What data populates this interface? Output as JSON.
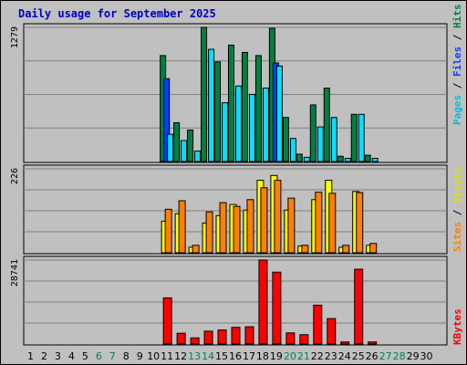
{
  "title": "Daily usage for September 2025",
  "chart_data": [
    {
      "type": "bar",
      "panel": "hits-files-pages",
      "ymax_label": "1279",
      "ylim": [
        0,
        1279
      ],
      "legend_labels": {
        "pages": "Pages",
        "files": "Files",
        "hits": "Hits",
        "sep": " / "
      },
      "categories": [
        "1",
        "2",
        "3",
        "4",
        "5",
        "6",
        "7",
        "8",
        "9",
        "10",
        "11",
        "12",
        "13",
        "14",
        "15",
        "16",
        "17",
        "18",
        "19",
        "20",
        "21",
        "22",
        "23",
        "24",
        "25",
        "26",
        "27",
        "28",
        "29",
        "30"
      ],
      "series": [
        {
          "name": "Hits",
          "color": "#008040",
          "values": [
            0,
            0,
            0,
            0,
            0,
            0,
            0,
            0,
            0,
            0,
            1010,
            370,
            300,
            1279,
            950,
            1110,
            1040,
            1010,
            1270,
            420,
            70,
            540,
            700,
            50,
            450,
            60,
            0,
            0,
            0,
            0
          ]
        },
        {
          "name": "Files",
          "color": "#0040ff",
          "values": [
            0,
            0,
            0,
            0,
            0,
            0,
            0,
            0,
            0,
            0,
            790,
            0,
            0,
            0,
            0,
            0,
            0,
            0,
            940,
            0,
            0,
            0,
            0,
            0,
            0,
            0,
            0,
            0,
            0,
            0
          ]
        },
        {
          "name": "Pages",
          "color": "#00e0ff",
          "values": [
            0,
            0,
            0,
            0,
            0,
            0,
            0,
            0,
            0,
            0,
            260,
            200,
            100,
            1070,
            560,
            720,
            640,
            700,
            910,
            220,
            40,
            330,
            420,
            30,
            450,
            30,
            0,
            0,
            0,
            0
          ]
        }
      ]
    },
    {
      "type": "bar",
      "panel": "sites-visits",
      "ymax_label": "226",
      "ylim": [
        0,
        226
      ],
      "legend_labels": {
        "sites": "Sites",
        "visits": "Visits",
        "sep": " / "
      },
      "categories": [
        "1",
        "2",
        "3",
        "4",
        "5",
        "6",
        "7",
        "8",
        "9",
        "10",
        "11",
        "12",
        "13",
        "14",
        "15",
        "16",
        "17",
        "18",
        "19",
        "20",
        "21",
        "22",
        "23",
        "24",
        "25",
        "26",
        "27",
        "28",
        "29",
        "30"
      ],
      "series": [
        {
          "name": "Visits",
          "color": "#ffff00",
          "values": [
            0,
            0,
            0,
            0,
            0,
            0,
            0,
            0,
            0,
            0,
            85,
            105,
            15,
            80,
            100,
            130,
            115,
            195,
            208,
            115,
            18,
            143,
            195,
            15,
            165,
            20,
            0,
            0,
            0,
            0
          ]
        },
        {
          "name": "Sites",
          "color": "#ff8000",
          "values": [
            0,
            0,
            0,
            0,
            0,
            0,
            0,
            0,
            0,
            0,
            117,
            140,
            20,
            110,
            135,
            125,
            143,
            175,
            195,
            147,
            20,
            163,
            160,
            20,
            162,
            25,
            0,
            0,
            0,
            0
          ]
        }
      ]
    },
    {
      "type": "bar",
      "panel": "kbytes",
      "ymax_label": "28741",
      "ylim": [
        0,
        28741
      ],
      "legend_labels": {
        "kbytes": "KBytes"
      },
      "categories": [
        "1",
        "2",
        "3",
        "4",
        "5",
        "6",
        "7",
        "8",
        "9",
        "10",
        "11",
        "12",
        "13",
        "14",
        "15",
        "16",
        "17",
        "18",
        "19",
        "20",
        "21",
        "22",
        "23",
        "24",
        "25",
        "26",
        "27",
        "28",
        "29",
        "30"
      ],
      "series": [
        {
          "name": "KBytes",
          "color": "#ff0000",
          "values": [
            0,
            0,
            0,
            0,
            0,
            0,
            0,
            0,
            0,
            0,
            15800,
            3700,
            2100,
            4400,
            4800,
            5700,
            5900,
            28741,
            24600,
            3800,
            3200,
            13300,
            8700,
            700,
            25600,
            700,
            0,
            0,
            0,
            0
          ]
        }
      ]
    }
  ],
  "weekend_days": [
    "6",
    "7",
    "13",
    "14",
    "20",
    "21",
    "27",
    "28"
  ]
}
